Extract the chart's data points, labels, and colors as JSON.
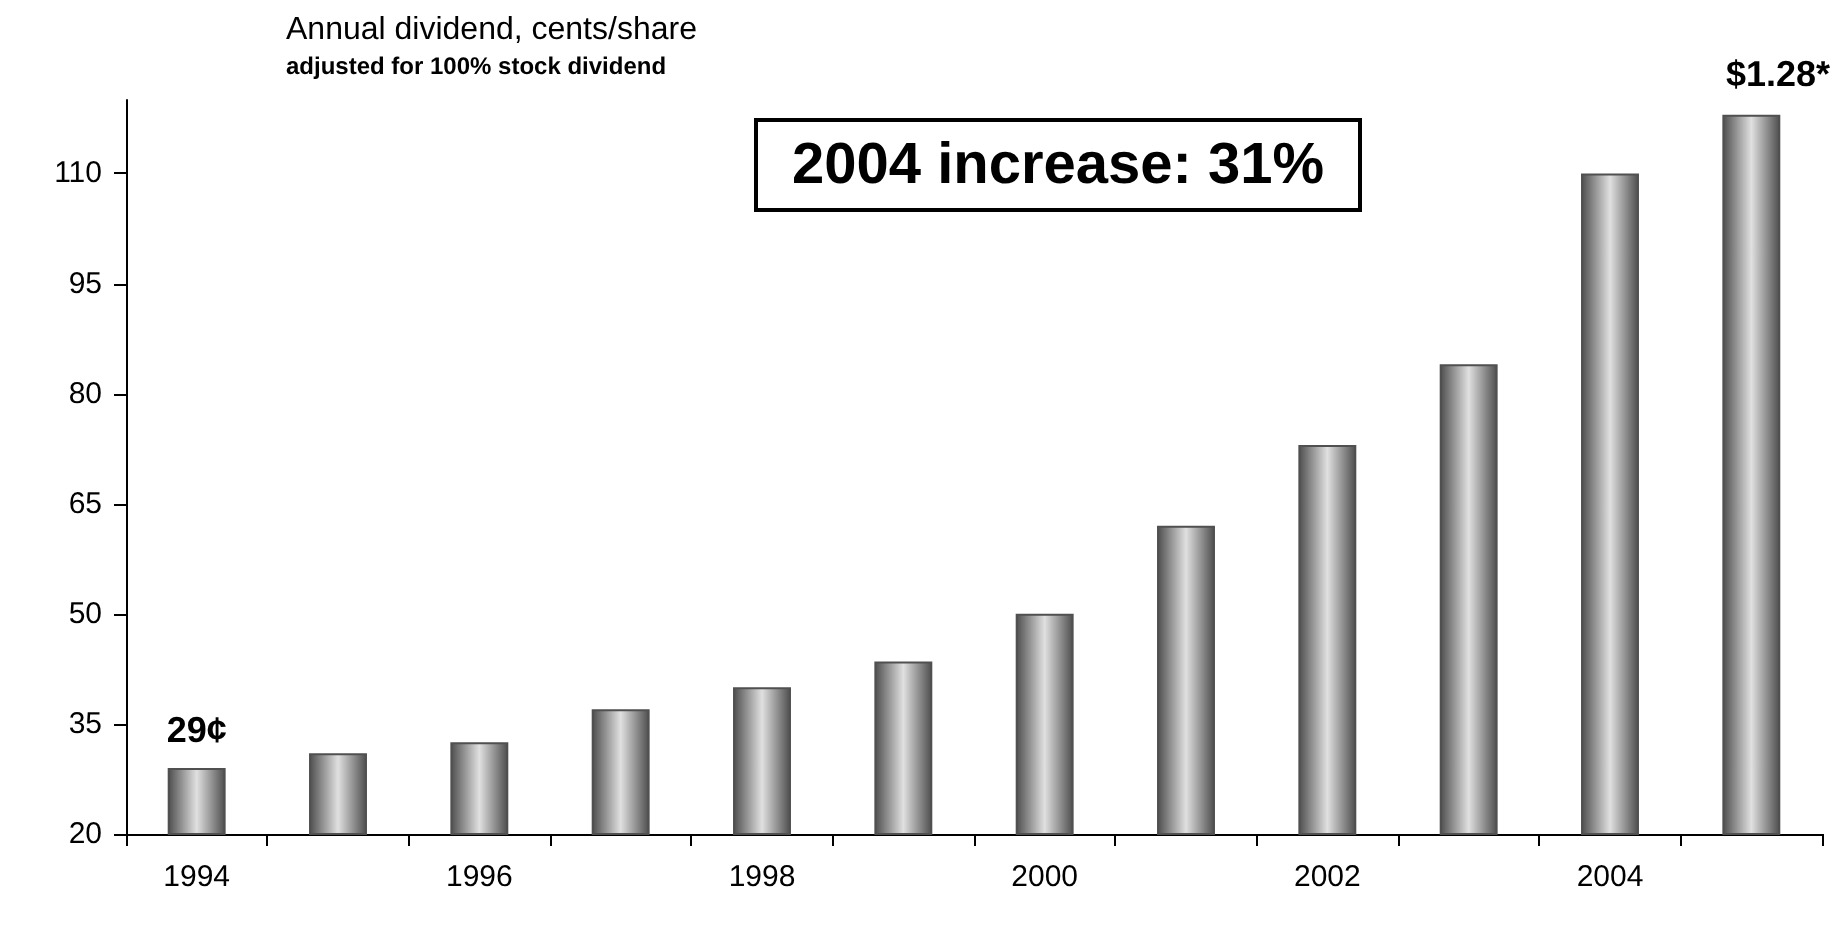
{
  "chart_data": {
    "type": "bar",
    "title": "Annual dividend, cents/share",
    "subtitle": "adjusted for 100% stock dividend",
    "annotations": [
      "2004 increase: 31%",
      "$1.28*"
    ],
    "categories": [
      "1994",
      null,
      "1996",
      null,
      "1998",
      null,
      "2000",
      null,
      "2002",
      null,
      "2004",
      null
    ],
    "values": [
      29,
      31,
      32.5,
      37,
      40,
      43.5,
      50,
      62,
      73,
      84,
      110,
      118
    ],
    "value_labels": [
      "29¢",
      null,
      null,
      null,
      null,
      null,
      null,
      null,
      null,
      null,
      null,
      null
    ],
    "color": "#505050",
    "ylim": [
      20,
      120
    ],
    "yticks": [
      20,
      35,
      50,
      65,
      80,
      95,
      110
    ],
    "grid": false
  }
}
